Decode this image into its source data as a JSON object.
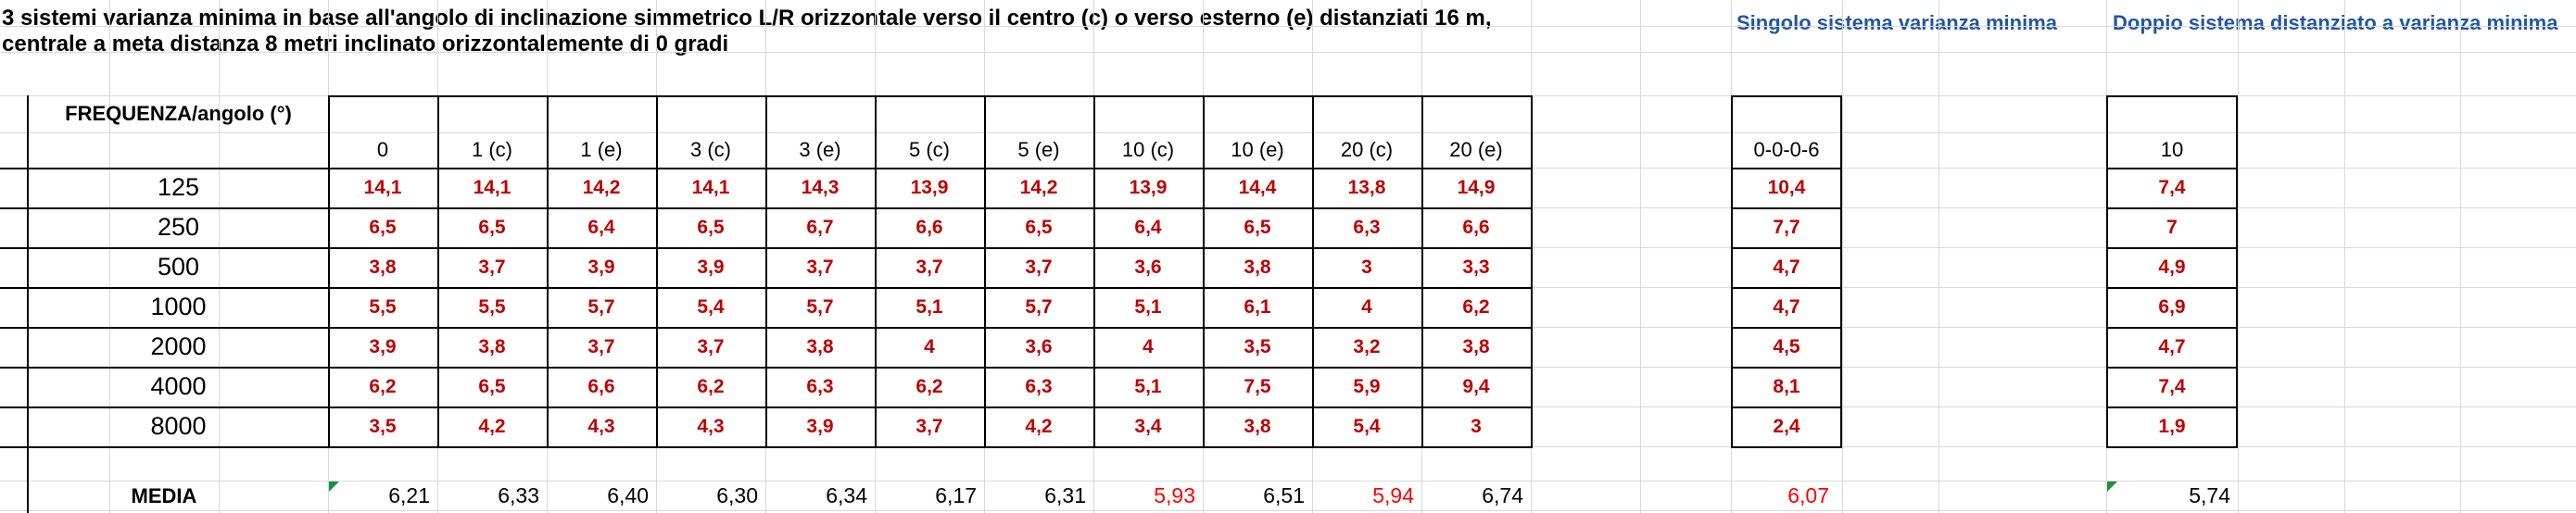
{
  "title": {
    "line1": "3 sistemi varianza minima in base all'angolo di inclinazione simmetrico L/R orizzontale verso il centro (c) o verso esterno (e) distanziati 16 m,",
    "line2": "centrale a meta distanza 8 metri inclinato orizzontalemente di 0 gradi"
  },
  "headings": {
    "singolo": "Singolo sistema varianza minima",
    "doppio": "Doppio sistema distanziato a varianza minima"
  },
  "table": {
    "corner_label": "FREQUENZA/angolo (°)",
    "angle_columns": [
      "0",
      "1 (c)",
      "1 (e)",
      "3 (c)",
      "3 (e)",
      "5 (c)",
      "5 (e)",
      "10 (c)",
      "10 (e)",
      "20 (c)",
      "20 (e)"
    ],
    "singolo_column": "0-0-0-6",
    "doppio_column": "10",
    "rows": [
      {
        "frequency": "125",
        "values": [
          "14,1",
          "14,1",
          "14,2",
          "14,1",
          "14,3",
          "13,9",
          "14,2",
          "13,9",
          "14,4",
          "13,8",
          "14,9"
        ],
        "singolo": "10,4",
        "doppio": "7,4"
      },
      {
        "frequency": "250",
        "values": [
          "6,5",
          "6,5",
          "6,4",
          "6,5",
          "6,7",
          "6,6",
          "6,5",
          "6,4",
          "6,5",
          "6,3",
          "6,6"
        ],
        "singolo": "7,7",
        "doppio": "7"
      },
      {
        "frequency": "500",
        "values": [
          "3,8",
          "3,7",
          "3,9",
          "3,9",
          "3,7",
          "3,7",
          "3,7",
          "3,6",
          "3,8",
          "3",
          "3,3"
        ],
        "singolo": "4,7",
        "doppio": "4,9"
      },
      {
        "frequency": "1000",
        "values": [
          "5,5",
          "5,5",
          "5,7",
          "5,4",
          "5,7",
          "5,1",
          "5,7",
          "5,1",
          "6,1",
          "4",
          "6,2"
        ],
        "singolo": "4,7",
        "doppio": "6,9"
      },
      {
        "frequency": "2000",
        "values": [
          "3,9",
          "3,8",
          "3,7",
          "3,7",
          "3,8",
          "4",
          "3,6",
          "4",
          "3,5",
          "3,2",
          "3,8"
        ],
        "singolo": "4,5",
        "doppio": "4,7"
      },
      {
        "frequency": "4000",
        "values": [
          "6,2",
          "6,5",
          "6,6",
          "6,2",
          "6,3",
          "6,2",
          "6,3",
          "5,1",
          "7,5",
          "5,9",
          "9,4"
        ],
        "singolo": "8,1",
        "doppio": "7,4"
      },
      {
        "frequency": "8000",
        "values": [
          "3,5",
          "4,2",
          "4,3",
          "4,3",
          "3,9",
          "3,7",
          "4,2",
          "3,4",
          "3,8",
          "5,4",
          "3"
        ],
        "singolo": "2,4",
        "doppio": "1,9"
      }
    ],
    "media": {
      "label": "MEDIA",
      "values": [
        "6,21",
        "6,33",
        "6,40",
        "6,30",
        "6,34",
        "6,17",
        "6,31",
        "5,93",
        "6,51",
        "5,94",
        "6,74"
      ],
      "red_indices": [
        7,
        9
      ],
      "singolo": "6,07",
      "doppio": "5,74"
    }
  },
  "icons": {
    "error_flag": "green-corner-triangle"
  },
  "colors": {
    "data_red": "#C00000",
    "media_red": "#FF0000",
    "heading_blue": "#2155A3",
    "flag_green": "#1E8F3E",
    "gridline_gray": "#d9d9d9"
  }
}
